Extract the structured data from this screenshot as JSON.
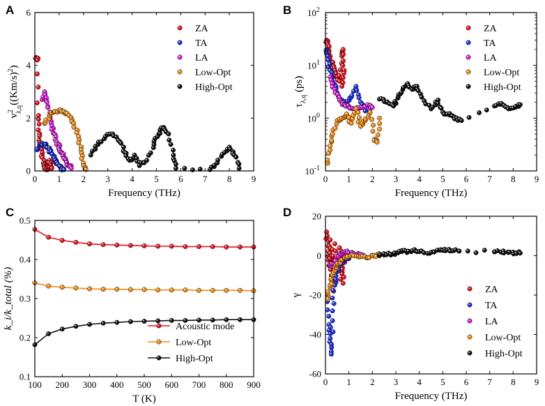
{
  "colors": {
    "ZA": "#e8101a",
    "TA": "#1a2fe8",
    "LA": "#e01ae0",
    "Low-Opt": "#f28a0f",
    "High-Opt": "#111111",
    "acoustic_line": "#e8101a",
    "lowopt_line": "#f28a0f",
    "highopt_line": "#111111"
  },
  "chart_data": [
    {
      "panel": "A",
      "type": "scatter",
      "xlabel": "Frequency (THz)",
      "ylabel_main": "v",
      "ylabel_sup": "2",
      "ylabel_sub": "λ,q",
      "ylabel_rest": "((Km/s)",
      "ylabel_sup2": "2",
      "ylabel_close": ")",
      "xlim": [
        0,
        9
      ],
      "ylim": [
        0,
        6
      ],
      "xticks": [
        "0",
        "1",
        "2",
        "3",
        "4",
        "5",
        "6",
        "7",
        "8",
        "9"
      ],
      "yticks": [
        "0",
        "2",
        "4",
        "6"
      ],
      "legend": [
        "ZA",
        "TA",
        "LA",
        "Low-Opt",
        "High-Opt"
      ],
      "series": [
        {
          "name": "ZA",
          "points": [
            [
              0.05,
              4.3
            ],
            [
              0.1,
              4.2
            ],
            [
              0.15,
              2.1
            ],
            [
              0.2,
              1.4
            ],
            [
              0.25,
              1.0
            ],
            [
              0.3,
              0.6
            ],
            [
              0.35,
              0.3
            ],
            [
              0.4,
              0.15
            ],
            [
              0.45,
              0.05
            ],
            [
              0.5,
              0.1
            ],
            [
              0.55,
              0.25
            ],
            [
              0.6,
              0.4
            ],
            [
              0.65,
              0.2
            ],
            [
              0.7,
              0.1
            ]
          ]
        },
        {
          "name": "TA",
          "points": [
            [
              0.1,
              0.8
            ],
            [
              0.2,
              1.0
            ],
            [
              0.3,
              1.05
            ],
            [
              0.4,
              1.0
            ],
            [
              0.5,
              0.9
            ],
            [
              0.6,
              0.8
            ],
            [
              0.7,
              0.65
            ],
            [
              0.8,
              0.5
            ],
            [
              0.9,
              0.35
            ],
            [
              1.0,
              0.2
            ],
            [
              1.1,
              0.1
            ],
            [
              1.2,
              0.05
            ]
          ]
        },
        {
          "name": "LA",
          "points": [
            [
              0.3,
              2.7
            ],
            [
              0.4,
              3.0
            ],
            [
              0.5,
              2.6
            ],
            [
              0.6,
              2.1
            ],
            [
              0.7,
              1.7
            ],
            [
              0.8,
              1.4
            ],
            [
              0.9,
              1.1
            ],
            [
              1.0,
              0.9
            ],
            [
              1.1,
              0.7
            ],
            [
              1.2,
              0.5
            ],
            [
              1.3,
              0.35
            ],
            [
              1.4,
              0.2
            ],
            [
              1.5,
              0.1
            ]
          ]
        },
        {
          "name": "Low-Opt",
          "points": [
            [
              0.4,
              1.8
            ],
            [
              0.6,
              2.1
            ],
            [
              0.8,
              2.25
            ],
            [
              1.0,
              2.3
            ],
            [
              1.2,
              2.25
            ],
            [
              1.4,
              2.1
            ],
            [
              1.6,
              1.8
            ],
            [
              1.8,
              1.3
            ],
            [
              1.9,
              0.8
            ],
            [
              2.0,
              0.3
            ],
            [
              2.1,
              0.05
            ]
          ]
        },
        {
          "name": "High-Opt",
          "points": [
            [
              2.3,
              0.6
            ],
            [
              2.6,
              1.0
            ],
            [
              2.9,
              1.3
            ],
            [
              3.2,
              1.4
            ],
            [
              3.5,
              1.1
            ],
            [
              3.7,
              0.7
            ],
            [
              3.9,
              0.4
            ],
            [
              4.1,
              0.6
            ],
            [
              4.3,
              0.2
            ],
            [
              4.6,
              0.4
            ],
            [
              4.9,
              1.0
            ],
            [
              5.1,
              1.4
            ],
            [
              5.3,
              1.65
            ],
            [
              5.5,
              1.4
            ],
            [
              5.7,
              0.6
            ],
            [
              5.8,
              0.1
            ],
            [
              7.2,
              0.05
            ],
            [
              7.5,
              0.3
            ],
            [
              7.8,
              0.7
            ],
            [
              8.0,
              0.9
            ],
            [
              8.2,
              0.6
            ],
            [
              8.4,
              0.1
            ]
          ]
        }
      ]
    },
    {
      "panel": "B",
      "type": "scatter",
      "xlabel": "Frequency (THz)",
      "ylabel_main": "τ",
      "ylabel_sub": "λ,q",
      "ylabel_rest": " (ps)",
      "yscale": "log",
      "xlim": [
        0,
        9
      ],
      "ylim": [
        0.1,
        100
      ],
      "xticks": [
        "0",
        "1",
        "2",
        "3",
        "4",
        "5",
        "6",
        "7",
        "8",
        "9"
      ],
      "yticks": [
        {
          "base": "10",
          "exp": "-1"
        },
        {
          "base": "10",
          "exp": "0"
        },
        {
          "base": "10",
          "exp": "1"
        },
        {
          "base": "10",
          "exp": "2"
        }
      ],
      "legend": [
        "ZA",
        "TA",
        "LA",
        "Low-Opt",
        "High-Opt"
      ],
      "series": [
        {
          "name": "ZA",
          "points": [
            [
              0.05,
              30
            ],
            [
              0.1,
              25
            ],
            [
              0.2,
              15
            ],
            [
              0.3,
              10
            ],
            [
              0.4,
              8
            ],
            [
              0.5,
              6
            ],
            [
              0.6,
              5
            ],
            [
              0.7,
              15
            ],
            [
              0.75,
              20
            ],
            [
              0.8,
              8
            ],
            [
              0.7,
              4
            ]
          ]
        },
        {
          "name": "TA",
          "points": [
            [
              0.05,
              20
            ],
            [
              0.1,
              15
            ],
            [
              0.2,
              8
            ],
            [
              0.3,
              5
            ],
            [
              0.5,
              3
            ],
            [
              0.7,
              2.2
            ],
            [
              0.9,
              2.0
            ],
            [
              1.1,
              2.5
            ],
            [
              1.3,
              4.0
            ],
            [
              1.5,
              2.0
            ],
            [
              1.7,
              1.5
            ],
            [
              1.9,
              1.3
            ]
          ]
        },
        {
          "name": "LA",
          "points": [
            [
              0.2,
              6
            ],
            [
              0.4,
              3.5
            ],
            [
              0.6,
              2.2
            ],
            [
              0.8,
              1.8
            ],
            [
              1.0,
              1.6
            ],
            [
              1.2,
              1.5
            ],
            [
              1.4,
              1.5
            ],
            [
              1.6,
              1.6
            ],
            [
              1.8,
              1.8
            ],
            [
              2.0,
              1.6
            ]
          ]
        },
        {
          "name": "Low-Opt",
          "points": [
            [
              0.1,
              0.14
            ],
            [
              0.2,
              0.3
            ],
            [
              0.3,
              0.5
            ],
            [
              0.5,
              0.9
            ],
            [
              0.7,
              1.0
            ],
            [
              0.9,
              1.2
            ],
            [
              1.1,
              0.8
            ],
            [
              1.3,
              1.5
            ],
            [
              1.5,
              0.7
            ],
            [
              1.7,
              0.9
            ],
            [
              1.9,
              1.3
            ],
            [
              2.1,
              0.4
            ],
            [
              2.2,
              0.35
            ],
            [
              2.3,
              1.0
            ]
          ]
        },
        {
          "name": "High-Opt",
          "points": [
            [
              2.3,
              2.3
            ],
            [
              2.6,
              2.0
            ],
            [
              2.9,
              1.7
            ],
            [
              3.1,
              2.5
            ],
            [
              3.3,
              3.5
            ],
            [
              3.5,
              4.5
            ],
            [
              3.7,
              3.5
            ],
            [
              3.9,
              4.0
            ],
            [
              4.1,
              2.5
            ],
            [
              4.5,
              1.5
            ],
            [
              4.8,
              2.2
            ],
            [
              5.0,
              1.3
            ],
            [
              5.2,
              1.2
            ],
            [
              5.4,
              1.1
            ],
            [
              5.6,
              1.0
            ],
            [
              5.8,
              0.9
            ],
            [
              7.2,
              1.7
            ],
            [
              7.5,
              1.9
            ],
            [
              7.8,
              1.5
            ],
            [
              8.1,
              1.6
            ],
            [
              8.3,
              1.8
            ]
          ]
        }
      ]
    },
    {
      "panel": "C",
      "type": "line",
      "xlabel": "T (K)",
      "ylabel": "k_i/k_total (%)",
      "xlim": [
        100,
        900
      ],
      "ylim": [
        0.1,
        0.5
      ],
      "xticks": [
        "100",
        "200",
        "300",
        "400",
        "500",
        "600",
        "700",
        "800",
        "900"
      ],
      "yticks": [
        "0.1",
        "0.2",
        "0.3",
        "0.4",
        "0.5"
      ],
      "x": [
        100,
        150,
        200,
        250,
        300,
        350,
        400,
        450,
        500,
        550,
        600,
        650,
        700,
        750,
        800,
        850,
        900
      ],
      "legend": [
        "Acoustic mode",
        "Low-Opt",
        "High-Opt"
      ],
      "series": [
        {
          "name": "Acoustic mode",
          "values": [
            0.477,
            0.457,
            0.449,
            0.444,
            0.44,
            0.438,
            0.437,
            0.436,
            0.435,
            0.434,
            0.434,
            0.433,
            0.433,
            0.433,
            0.432,
            0.432,
            0.432
          ]
        },
        {
          "name": "Low-Opt",
          "values": [
            0.34,
            0.332,
            0.329,
            0.327,
            0.325,
            0.324,
            0.324,
            0.323,
            0.323,
            0.322,
            0.322,
            0.322,
            0.321,
            0.321,
            0.321,
            0.321,
            0.32
          ]
        },
        {
          "name": "High-Opt",
          "values": [
            0.182,
            0.21,
            0.222,
            0.229,
            0.234,
            0.237,
            0.239,
            0.241,
            0.242,
            0.243,
            0.244,
            0.244,
            0.245,
            0.245,
            0.246,
            0.246,
            0.246
          ]
        }
      ]
    },
    {
      "panel": "D",
      "type": "scatter",
      "xlabel": "Frequency (THz)",
      "ylabel": "γ",
      "xlim": [
        0,
        9
      ],
      "ylim": [
        -60,
        20
      ],
      "xticks": [
        "0",
        "1",
        "2",
        "3",
        "4",
        "5",
        "6",
        "7",
        "8",
        "9"
      ],
      "yticks": [
        "-60",
        "-40",
        "-20",
        "0",
        "20"
      ],
      "legend": [
        "ZA",
        "TA",
        "LA",
        "Low-Opt",
        "High-Opt"
      ],
      "series": [
        {
          "name": "ZA",
          "points": [
            [
              0.05,
              12
            ],
            [
              0.1,
              5
            ],
            [
              0.15,
              -5
            ],
            [
              0.2,
              8
            ],
            [
              0.25,
              -10
            ],
            [
              0.3,
              3
            ],
            [
              0.35,
              -18
            ],
            [
              0.4,
              6
            ],
            [
              0.5,
              -8
            ],
            [
              0.6,
              4
            ],
            [
              0.65,
              -12
            ],
            [
              0.7,
              2
            ],
            [
              0.75,
              -14
            ],
            [
              0.8,
              1
            ]
          ]
        },
        {
          "name": "TA",
          "points": [
            [
              0.1,
              -20
            ],
            [
              0.15,
              -35
            ],
            [
              0.2,
              -42
            ],
            [
              0.25,
              -50
            ],
            [
              0.3,
              -28
            ],
            [
              0.4,
              -15
            ],
            [
              0.5,
              -8
            ],
            [
              0.6,
              -5
            ],
            [
              0.8,
              -2
            ],
            [
              1.0,
              -1
            ]
          ]
        },
        {
          "name": "LA",
          "points": [
            [
              0.2,
              -5
            ],
            [
              0.4,
              -3
            ],
            [
              0.6,
              1
            ],
            [
              0.8,
              2
            ],
            [
              1.0,
              1.5
            ],
            [
              1.2,
              1.0
            ],
            [
              1.4,
              0.5
            ],
            [
              1.6,
              0.3
            ]
          ]
        },
        {
          "name": "Low-Opt",
          "points": [
            [
              0.1,
              -22
            ],
            [
              0.2,
              -15
            ],
            [
              0.3,
              -10
            ],
            [
              0.4,
              -6
            ],
            [
              0.5,
              -4
            ],
            [
              0.7,
              -2
            ],
            [
              0.9,
              -1
            ],
            [
              1.2,
              0
            ],
            [
              1.5,
              -0.5
            ],
            [
              1.8,
              -1
            ],
            [
              2.1,
              0
            ],
            [
              2.3,
              0.5
            ]
          ]
        },
        {
          "name": "High-Opt",
          "points": [
            [
              2.3,
              0
            ],
            [
              2.6,
              0.5
            ],
            [
              2.9,
              1
            ],
            [
              3.1,
              1.5
            ],
            [
              3.3,
              2.5
            ],
            [
              3.5,
              2
            ],
            [
              3.7,
              2.5
            ],
            [
              3.9,
              2
            ],
            [
              4.2,
              1.5
            ],
            [
              4.6,
              2
            ],
            [
              4.9,
              3
            ],
            [
              5.1,
              2.5
            ],
            [
              5.4,
              2.5
            ],
            [
              5.7,
              2.3
            ],
            [
              7.2,
              2
            ],
            [
              7.5,
              1.8
            ],
            [
              7.8,
              1.6
            ],
            [
              8.1,
              1.4
            ],
            [
              8.3,
              1.3
            ]
          ]
        }
      ]
    }
  ]
}
